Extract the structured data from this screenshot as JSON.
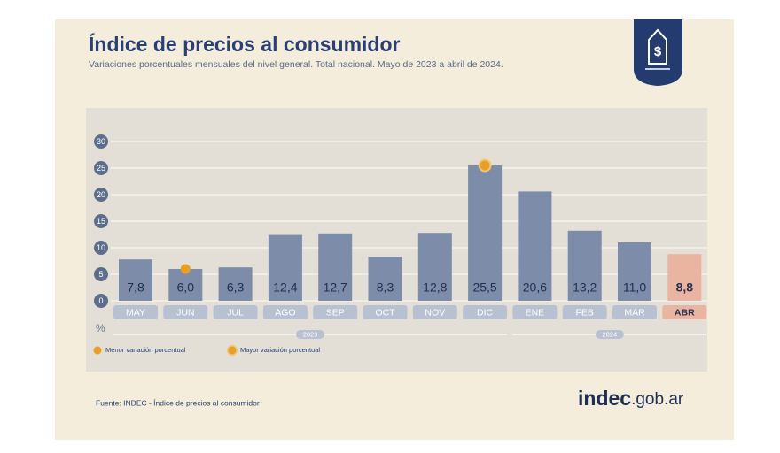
{
  "chart_data": {
    "type": "bar",
    "title": "Índice de precios al consumidor",
    "subtitle": "Variaciones porcentuales mensuales del nivel general. Total nacional. Mayo de 2023 a abril de 2024.",
    "y_label": "%",
    "categories": [
      "MAY",
      "JUN",
      "JUL",
      "AGO",
      "SEP",
      "OCT",
      "NOV",
      "DIC",
      "ENE",
      "FEB",
      "MAR",
      "ABR"
    ],
    "values": [
      7.8,
      6.0,
      6.3,
      12.4,
      12.7,
      8.3,
      12.8,
      25.5,
      20.6,
      13.2,
      11.0,
      8.8
    ],
    "value_labels": [
      "7,8",
      "6,0",
      "6,3",
      "12,4",
      "12,7",
      "8,3",
      "12,8",
      "25,5",
      "20,6",
      "13,2",
      "11,0",
      "8,8"
    ],
    "colors": [
      "#7d8ca9",
      "#7d8ca9",
      "#7d8ca9",
      "#7d8ca9",
      "#7d8ca9",
      "#7d8ca9",
      "#7d8ca9",
      "#7d8ca9",
      "#7d8ca9",
      "#7d8ca9",
      "#7d8ca9",
      "#e9b5a0"
    ],
    "groups": [
      {
        "label": "2023",
        "count": 8
      },
      {
        "label": "2024",
        "count": 4
      }
    ],
    "legend": [
      {
        "label": "Menor variación porcentual",
        "color": "#e8a020"
      },
      {
        "label": "Mayor variación porcentual",
        "color": "#e8a020"
      }
    ],
    "ylim": [
      0,
      30
    ],
    "yticks": [
      0,
      5,
      10,
      15,
      20,
      25,
      30
    ],
    "grid": true,
    "source": "Fuente: INDEC - Índice de precios al consumidor",
    "brand": {
      "main": "indec",
      "suffix": ".gob.ar"
    }
  }
}
